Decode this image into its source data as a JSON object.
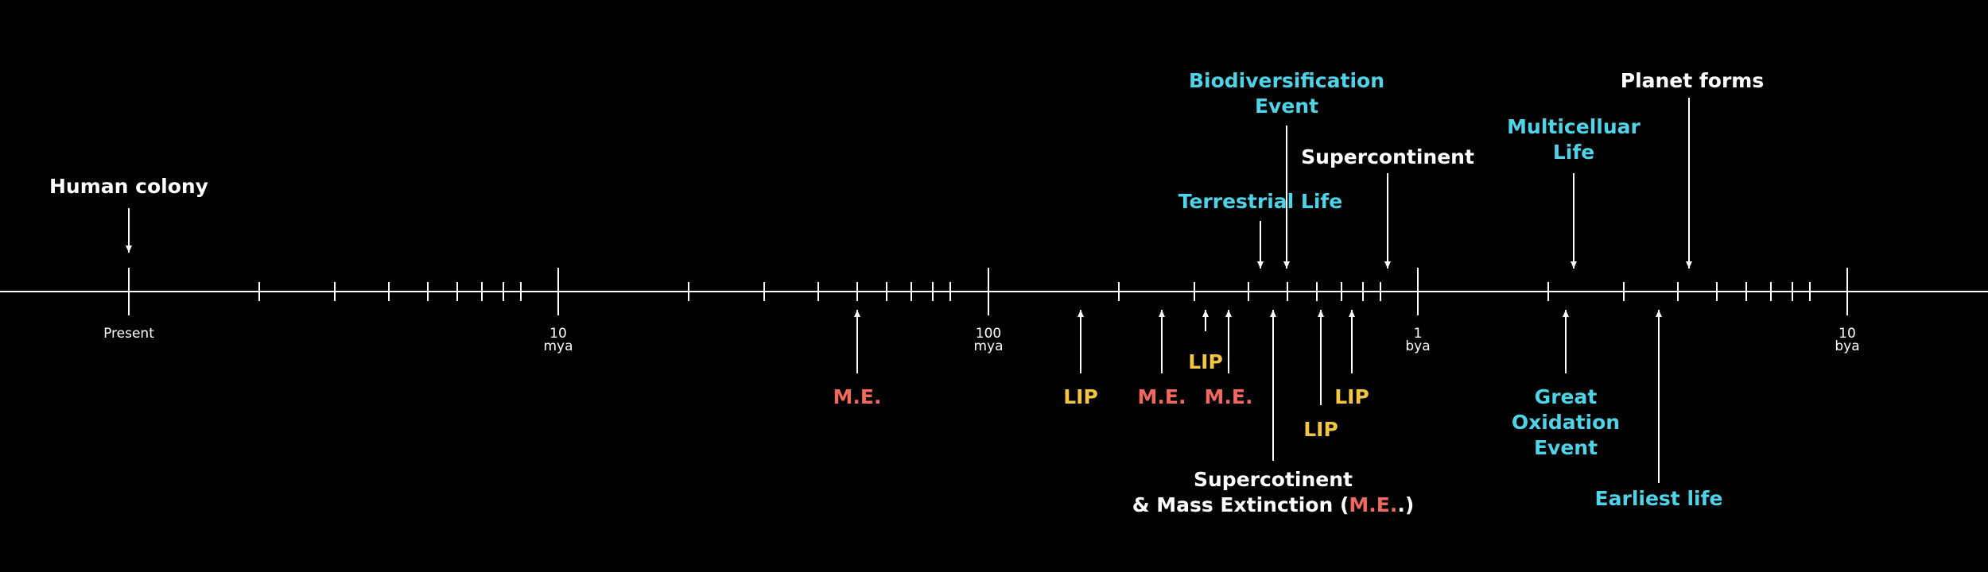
{
  "colors": {
    "background": "#000000",
    "line": "#ffffff",
    "white": "#ffffff",
    "cyan": "#4fd3e8",
    "red": "#f2685f",
    "yellow": "#f4c542"
  },
  "axis": {
    "scale": "log",
    "ticks": [
      {
        "label_lines": [
          "Present"
        ]
      },
      {
        "label_lines": [
          "10",
          "mya"
        ]
      },
      {
        "label_lines": [
          "100",
          "mya"
        ]
      },
      {
        "label_lines": [
          "1",
          "bya"
        ]
      },
      {
        "label_lines": [
          "10",
          "bya"
        ]
      }
    ]
  },
  "events_above": [
    {
      "id": "human-colony",
      "lines": [
        "Human colony"
      ],
      "color": "white"
    },
    {
      "id": "terrestrial-life",
      "lines": [
        "Terrestrial Life"
      ],
      "color": "cyan"
    },
    {
      "id": "biodiversification-event",
      "lines": [
        "Biodiversification",
        "Event"
      ],
      "color": "cyan"
    },
    {
      "id": "supercontinent",
      "lines": [
        "Supercontinent"
      ],
      "color": "white"
    },
    {
      "id": "multicellular-life",
      "lines": [
        "Multicelluar",
        "Life"
      ],
      "color": "cyan"
    },
    {
      "id": "planet-forms",
      "lines": [
        "Planet forms"
      ],
      "color": "white"
    }
  ],
  "events_below": [
    {
      "id": "me-1",
      "lines": [
        "M.E."
      ],
      "color": "red"
    },
    {
      "id": "lip-1",
      "lines": [
        "LIP"
      ],
      "color": "yellow"
    },
    {
      "id": "me-2",
      "lines": [
        "M.E."
      ],
      "color": "red"
    },
    {
      "id": "lip-2",
      "lines": [
        "LIP"
      ],
      "color": "yellow"
    },
    {
      "id": "me-3",
      "lines": [
        "M.E."
      ],
      "color": "red"
    },
    {
      "id": "supercontinent-mass-extinction",
      "lines": [
        "Supercotinent",
        "& Mass Extinction ("
      ],
      "suffix": "M.E.",
      "suffix_color": "red",
      "closing": ".)",
      "color": "white"
    },
    {
      "id": "lip-3",
      "lines": [
        "LIP"
      ],
      "color": "yellow"
    },
    {
      "id": "lip-4",
      "lines": [
        "LIP"
      ],
      "color": "yellow"
    },
    {
      "id": "great-oxidation-event",
      "lines": [
        "Great",
        "Oxidation",
        "Event"
      ],
      "color": "cyan"
    },
    {
      "id": "earliest-life",
      "lines": [
        "Earliest life"
      ],
      "color": "cyan"
    }
  ]
}
